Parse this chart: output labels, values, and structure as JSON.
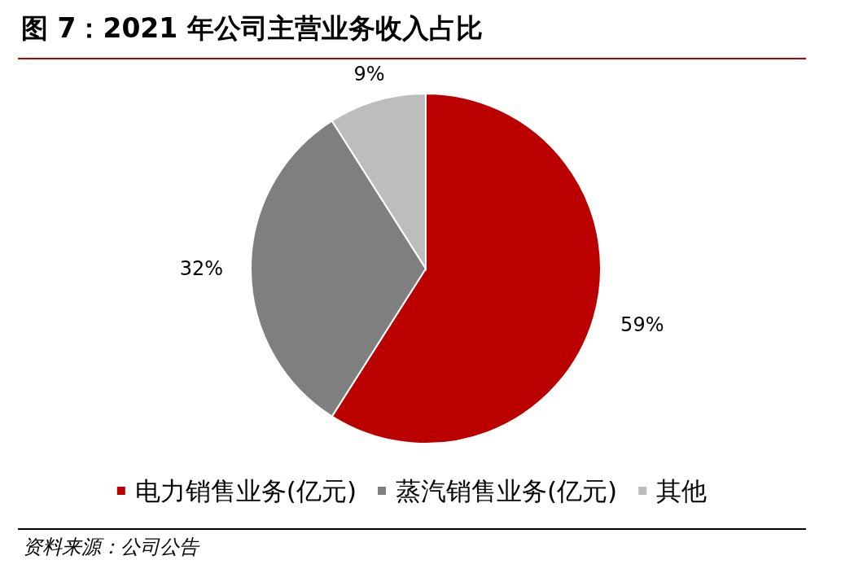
{
  "chart_data": {
    "type": "pie",
    "title": "图 7：2021 年公司主营业务收入占比",
    "categories": [
      "电力销售业务(亿元)",
      "蒸汽销售业务(亿元)",
      "其他"
    ],
    "values": [
      59,
      32,
      9
    ],
    "colors": [
      "#bb0000",
      "#7f7f7f",
      "#bdbdbd"
    ],
    "value_labels": [
      "59%",
      "32%",
      "9%"
    ],
    "legend": "bottom",
    "annotations": [
      "资料来源：公司公告"
    ]
  }
}
